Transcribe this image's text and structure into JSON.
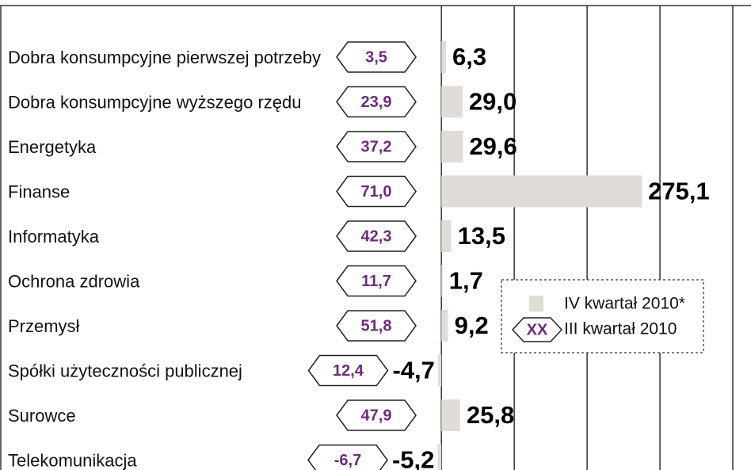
{
  "chart_data": {
    "type": "bar",
    "categories": [
      "Dobra konsumpcyjne pierwszej potrzeby",
      "Dobra konsumpcyjne wyższego rzędu",
      "Energetyka",
      "Finanse",
      "Informatyka",
      "Ochrona zdrowia",
      "Przemysł",
      "Spółki użyteczności publicznej",
      "Surowce",
      "Telekomunikacja"
    ],
    "series": [
      {
        "name": "IV kwartał 2010*",
        "color": "#e0dcd8",
        "values": [
          6.3,
          29.0,
          29.6,
          275.1,
          13.5,
          1.7,
          9.2,
          -4.7,
          25.8,
          -5.2
        ],
        "value_labels": [
          "6,3",
          "29,0",
          "29,6",
          "275,1",
          "13,5",
          "1,7",
          "9,2",
          "-4,7",
          "25,8",
          "-5,2"
        ]
      },
      {
        "name": "III kwartał 2010",
        "color": "#6b2c7b",
        "values": [
          3.5,
          23.9,
          37.2,
          71.0,
          42.3,
          11.7,
          51.8,
          12.4,
          47.9,
          -6.7
        ],
        "value_labels": [
          "3,5",
          "23,9",
          "37,2",
          "71,0",
          "42,3",
          "11,7",
          "51,8",
          "12,4",
          "47,9",
          "-6,7"
        ]
      }
    ],
    "legend_symbol_text": "XX",
    "xlim": [
      -10,
      425
    ],
    "xticks": [
      0,
      100,
      200,
      300,
      400
    ],
    "grid": true
  }
}
